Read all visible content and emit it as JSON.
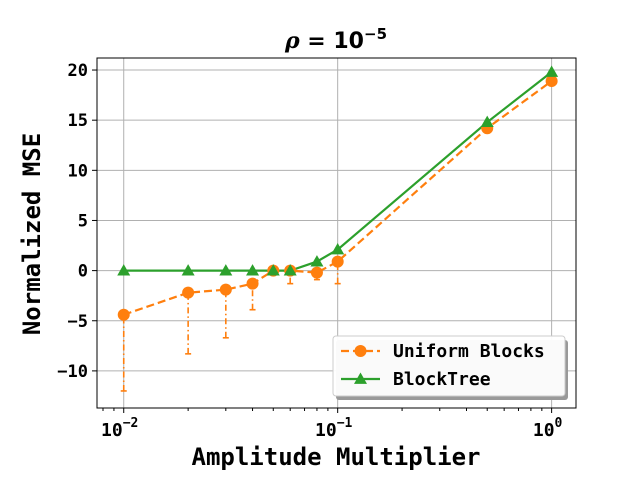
{
  "chart_data": {
    "type": "line",
    "title": {
      "symbol": "ρ",
      "equals": " = 10",
      "exponent": "−5"
    },
    "xlabel": "Amplitude Multiplier",
    "ylabel": "Normalized MSE",
    "xscale": "log",
    "xlim": [
      0.0075,
      1.3
    ],
    "ylim": [
      -13.7,
      21.2
    ],
    "xticks": [
      {
        "value": 0.01,
        "base": "10",
        "exp": "−2"
      },
      {
        "value": 0.1,
        "base": "10",
        "exp": "−1"
      },
      {
        "value": 1,
        "base": "10",
        "exp": "0"
      }
    ],
    "yticks": [
      {
        "value": -10,
        "label": "−10"
      },
      {
        "value": -5,
        "label": "−5"
      },
      {
        "value": 0,
        "label": "0"
      },
      {
        "value": 5,
        "label": "5"
      },
      {
        "value": 10,
        "label": "10"
      },
      {
        "value": 15,
        "label": "15"
      },
      {
        "value": 20,
        "label": "20"
      }
    ],
    "grid": true,
    "legend_position": "lower-right",
    "series": [
      {
        "name": "Uniform Blocks",
        "color": "#ff7f0e",
        "marker": "circle",
        "linestyle": "dashed",
        "x": [
          0.01,
          0.02,
          0.03,
          0.04,
          0.05,
          0.06,
          0.08,
          0.1,
          0.5,
          1.0
        ],
        "y": [
          -4.4,
          -2.2,
          -1.9,
          -1.3,
          0.0,
          0.0,
          -0.2,
          0.9,
          14.2,
          18.9
        ],
        "err_low": [
          -12.0,
          -8.3,
          -6.7,
          -3.9,
          -0.4,
          -1.3,
          -0.9,
          -1.3,
          14.2,
          18.9
        ],
        "err_high": [
          -4.4,
          -2.2,
          -1.9,
          -1.3,
          0.0,
          0.0,
          -0.2,
          0.9,
          14.2,
          18.9
        ]
      },
      {
        "name": "BlockTree",
        "color": "#2ca02c",
        "marker": "triangle",
        "linestyle": "solid",
        "x": [
          0.01,
          0.02,
          0.03,
          0.04,
          0.05,
          0.06,
          0.08,
          0.1,
          0.5,
          1.0
        ],
        "y": [
          0.0,
          0.0,
          0.0,
          0.0,
          0.0,
          0.0,
          0.9,
          2.1,
          14.8,
          19.8
        ]
      }
    ]
  }
}
